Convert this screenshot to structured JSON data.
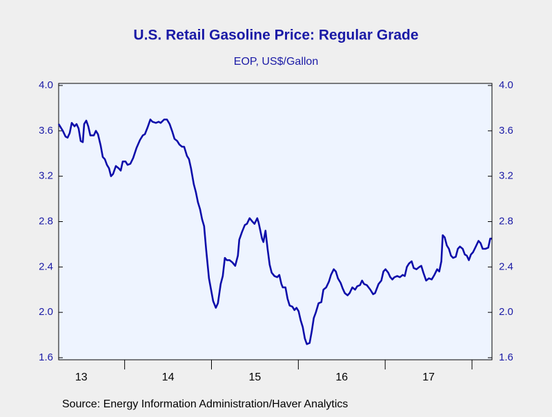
{
  "chart_data": {
    "type": "line",
    "title": "U.S. Retail Gasoline Price: Regular Grade",
    "subtitle": "EOP, US$/Gallon",
    "source": "Source:  Energy Information Administration/Haver Analytics",
    "xlim": [
      2013.24,
      2018.23
    ],
    "xticks": [
      {
        "value": 2013.5,
        "label": "13"
      },
      {
        "value": 2014.5,
        "label": "14"
      },
      {
        "value": 2015.5,
        "label": "15"
      },
      {
        "value": 2016.5,
        "label": "16"
      },
      {
        "value": 2017.5,
        "label": "17"
      }
    ],
    "xtick_marks": [
      2014,
      2015,
      2016,
      2017,
      2018
    ],
    "ylim": [
      1.6,
      4.0
    ],
    "yticks": [
      1.6,
      {
        "value": 2.0,
        "label": "2.0"
      },
      2.4,
      2.8,
      3.2,
      3.6,
      {
        "value": 4.0,
        "label": "4.0"
      }
    ],
    "right_axis": true,
    "grid": false,
    "x": [
      2013.24,
      2013.288,
      2013.319,
      2013.343,
      2013.367,
      2013.391,
      2013.423,
      2013.446,
      2013.47,
      2013.494,
      2013.518,
      2013.534,
      2013.558,
      2013.581,
      2013.605,
      2013.645,
      2013.669,
      2013.693,
      2013.724,
      2013.748,
      2013.772,
      2013.796,
      2013.82,
      2013.843,
      2013.867,
      2013.899,
      2013.931,
      2013.955,
      2013.978,
      2014.01,
      2014.034,
      2014.066,
      2014.098,
      2014.137,
      2014.177,
      2014.209,
      2014.233,
      2014.264,
      2014.296,
      2014.32,
      2014.36,
      2014.391,
      2014.415,
      2014.455,
      2014.487,
      2014.518,
      2014.55,
      2014.574,
      2014.606,
      2014.63,
      2014.661,
      2014.685,
      2014.717,
      2014.741,
      2014.764,
      2014.796,
      2014.82,
      2014.844,
      2014.868,
      2014.892,
      2014.915,
      2014.939,
      2014.971,
      2014.995,
      2015.019,
      2015.05,
      2015.074,
      2015.106,
      2015.13,
      2015.154,
      2015.177,
      2015.209,
      2015.241,
      2015.273,
      2015.304,
      2015.32,
      2015.352,
      2015.384,
      2015.408,
      2015.439,
      2015.471,
      2015.495,
      2015.527,
      2015.543,
      2015.582,
      2015.598,
      2015.622,
      2015.646,
      2015.67,
      2015.693,
      2015.725,
      2015.757,
      2015.781,
      2015.805,
      2015.821,
      2015.852,
      2015.876,
      2015.9,
      2015.932,
      2015.955,
      2015.979,
      2016.003,
      2016.027,
      2016.051,
      2016.075,
      2016.098,
      2016.13,
      2016.154,
      2016.178,
      2016.202,
      2016.233,
      2016.265,
      2016.289,
      2016.321,
      2016.352,
      2016.376,
      2016.408,
      2016.432,
      2016.456,
      2016.487,
      2016.511,
      2016.535,
      2016.567,
      2016.591,
      2016.622,
      2016.654,
      2016.678,
      2016.71,
      2016.734,
      2016.757,
      2016.789,
      2016.829,
      2016.861,
      2016.884,
      2016.924,
      2016.956,
      2016.98,
      2017.004,
      2017.035,
      2017.059,
      2017.083,
      2017.107,
      2017.139,
      2017.17,
      2017.202,
      2017.226,
      2017.25,
      2017.274,
      2017.305,
      2017.329,
      2017.361,
      2017.393,
      2017.416,
      2017.44,
      2017.472,
      2017.504,
      2017.536,
      2017.567,
      2017.599,
      2017.623,
      2017.647,
      2017.663,
      2017.686,
      2017.71,
      2017.734,
      2017.758,
      2017.782,
      2017.813,
      2017.837,
      2017.861,
      2017.893,
      2017.917,
      2017.94,
      2017.964,
      2017.988,
      2018.012,
      2018.044,
      2018.075,
      2018.099,
      2018.123,
      2018.155,
      2018.187,
      2018.21,
      2018.226
    ],
    "series": [
      {
        "name": "Regular Grade",
        "color": "#0d0daa",
        "values": [
          3.66,
          3.6,
          3.55,
          3.54,
          3.58,
          3.67,
          3.64,
          3.66,
          3.62,
          3.51,
          3.5,
          3.66,
          3.69,
          3.64,
          3.56,
          3.56,
          3.6,
          3.57,
          3.47,
          3.37,
          3.35,
          3.3,
          3.27,
          3.2,
          3.22,
          3.29,
          3.27,
          3.25,
          3.33,
          3.33,
          3.3,
          3.31,
          3.36,
          3.45,
          3.52,
          3.56,
          3.57,
          3.63,
          3.7,
          3.68,
          3.67,
          3.68,
          3.67,
          3.7,
          3.7,
          3.66,
          3.59,
          3.53,
          3.51,
          3.48,
          3.46,
          3.46,
          3.38,
          3.35,
          3.27,
          3.13,
          3.06,
          2.97,
          2.91,
          2.82,
          2.76,
          2.55,
          2.3,
          2.2,
          2.1,
          2.04,
          2.08,
          2.25,
          2.32,
          2.48,
          2.46,
          2.46,
          2.44,
          2.41,
          2.5,
          2.64,
          2.71,
          2.77,
          2.78,
          2.83,
          2.8,
          2.78,
          2.83,
          2.79,
          2.65,
          2.62,
          2.72,
          2.56,
          2.42,
          2.35,
          2.32,
          2.31,
          2.33,
          2.25,
          2.22,
          2.22,
          2.12,
          2.06,
          2.05,
          2.02,
          2.04,
          2.01,
          1.93,
          1.87,
          1.77,
          1.72,
          1.73,
          1.83,
          1.95,
          2.0,
          2.08,
          2.09,
          2.2,
          2.22,
          2.27,
          2.33,
          2.38,
          2.36,
          2.3,
          2.26,
          2.21,
          2.17,
          2.15,
          2.17,
          2.22,
          2.2,
          2.23,
          2.24,
          2.28,
          2.25,
          2.24,
          2.2,
          2.16,
          2.17,
          2.25,
          2.28,
          2.36,
          2.38,
          2.35,
          2.31,
          2.29,
          2.31,
          2.32,
          2.31,
          2.33,
          2.32,
          2.4,
          2.43,
          2.45,
          2.39,
          2.38,
          2.4,
          2.41,
          2.35,
          2.28,
          2.3,
          2.29,
          2.33,
          2.38,
          2.36,
          2.45,
          2.68,
          2.66,
          2.59,
          2.56,
          2.5,
          2.48,
          2.49,
          2.56,
          2.58,
          2.56,
          2.51,
          2.5,
          2.46,
          2.51,
          2.53,
          2.58,
          2.63,
          2.61,
          2.56,
          2.56,
          2.57,
          2.65,
          2.65
        ]
      }
    ]
  }
}
